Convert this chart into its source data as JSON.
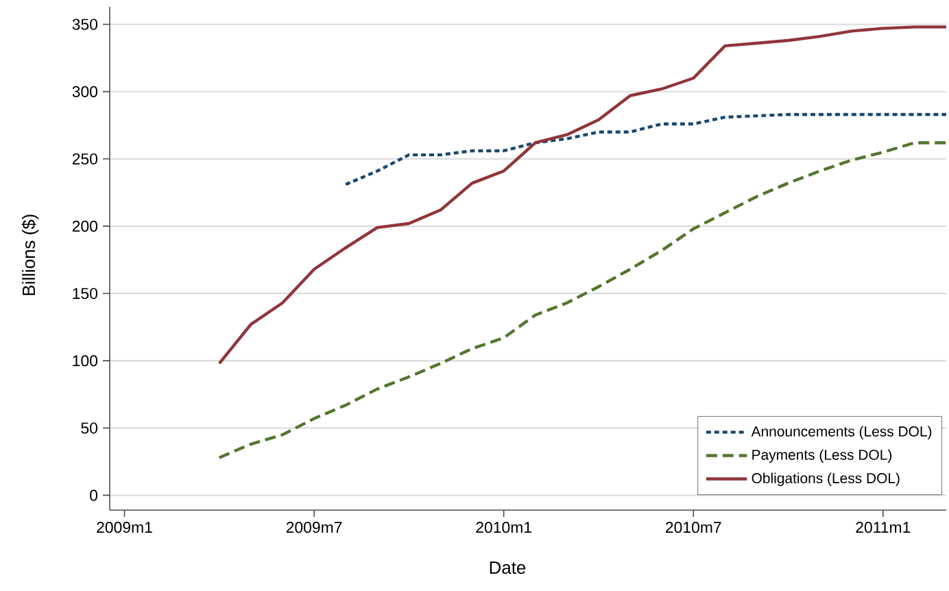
{
  "chart_data": {
    "type": "line",
    "xlabel": "Date",
    "ylabel": "Billions ($)",
    "x": [
      "2009-04",
      "2009-05",
      "2009-06",
      "2009-07",
      "2009-08",
      "2009-09",
      "2009-10",
      "2009-11",
      "2009-12",
      "2010-01",
      "2010-02",
      "2010-03",
      "2010-04",
      "2010-05",
      "2010-06",
      "2010-07",
      "2010-08",
      "2010-09",
      "2010-10",
      "2010-11",
      "2010-12",
      "2011-01",
      "2011-02",
      "2011-03"
    ],
    "series": [
      {
        "name": "Announcements (Less DOL)",
        "color": "#1a476f",
        "line_style": "dotted",
        "values": [
          null,
          null,
          null,
          null,
          231,
          241,
          253,
          253,
          256,
          256,
          262,
          265,
          270,
          270,
          276,
          276,
          281,
          282,
          283,
          283,
          283,
          283,
          283,
          283
        ]
      },
      {
        "name": "Payments (Less DOL)",
        "color": "#55752f",
        "line_style": "dashed",
        "values": [
          28,
          38,
          45,
          57,
          67,
          79,
          88,
          98,
          109,
          117,
          134,
          143,
          155,
          168,
          182,
          198,
          210,
          222,
          232,
          241,
          249,
          255,
          262,
          262
        ]
      },
      {
        "name": "Obligations (Less DOL)",
        "color": "#90353b",
        "line_style": "solid",
        "values": [
          98,
          127,
          143,
          168,
          184,
          199,
          202,
          212,
          232,
          241,
          262,
          268,
          279,
          297,
          302,
          310,
          334,
          336,
          338,
          341,
          345,
          347,
          348,
          348
        ]
      }
    ],
    "xlim": [
      "2008-12-17",
      "2011-03"
    ],
    "ylim": [
      -11,
      363
    ],
    "xticks": [
      {
        "value": "2009-01",
        "label": "2009m1"
      },
      {
        "value": "2009-07",
        "label": "2009m7"
      },
      {
        "value": "2010-01",
        "label": "2010m1"
      },
      {
        "value": "2010-07",
        "label": "2010m7"
      },
      {
        "value": "2011-01",
        "label": "2011m1"
      }
    ],
    "yticks": [
      0,
      50,
      100,
      150,
      200,
      250,
      300,
      350
    ],
    "grid": "y",
    "legend": "bottom right"
  }
}
